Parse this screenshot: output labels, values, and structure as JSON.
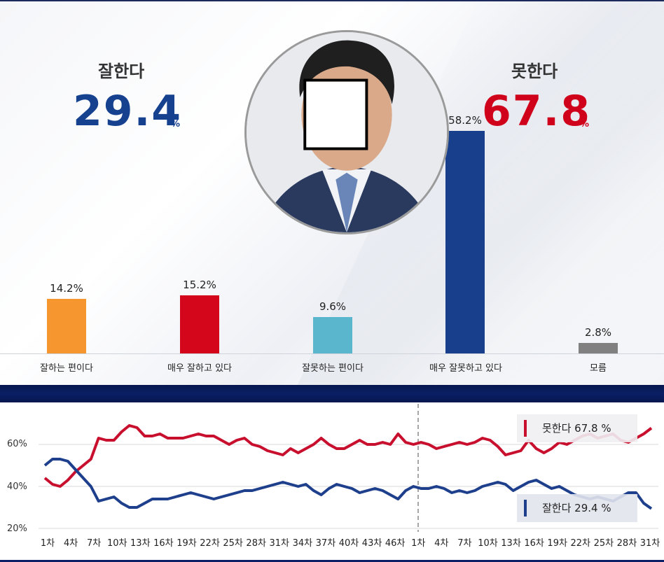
{
  "headline": {
    "good_label": "잘한다",
    "good_value": "29.4",
    "good_unit": "%",
    "bad_label": "못한다",
    "bad_value": "67.8",
    "bad_unit": "%"
  },
  "colors": {
    "good": "#16418f",
    "bad": "#d0021b",
    "orange": "#f6962e",
    "red_bar": "#d3061b",
    "light_blue": "#59b6cd",
    "navy_bar": "#173f8c",
    "gray_bar": "#808080"
  },
  "chart_data": [
    {
      "type": "bar",
      "categories": [
        "잘하는 편이다",
        "매우 잘하고 있다",
        "잘못하는 편이다",
        "매우 잘못하고 있다",
        "모름"
      ],
      "values": [
        14.2,
        15.2,
        9.6,
        58.2,
        2.8
      ],
      "value_labels": [
        "14.2%",
        "15.2%",
        "9.6%",
        "58.2%",
        "2.8%"
      ],
      "bar_colors": [
        "#f6962e",
        "#d3061b",
        "#59b6cd",
        "#173f8c",
        "#808080"
      ],
      "ylim": [
        0,
        60
      ]
    },
    {
      "type": "line",
      "x_tick_labels": [
        "1차",
        "4차",
        "7차",
        "10차",
        "13차",
        "16차",
        "19차",
        "22차",
        "25차",
        "28차",
        "31차",
        "34차",
        "37차",
        "40차",
        "43차",
        "46차",
        "1차",
        "4차",
        "7차",
        "10차",
        "13차",
        "16차",
        "19차",
        "22차",
        "25차",
        "28차",
        "31차"
      ],
      "y_tick_labels": [
        "60%",
        "40%",
        "20%"
      ],
      "ylim": [
        20,
        70
      ],
      "divider_after_index": 47,
      "series": [
        {
          "name": "못한다",
          "color": "#c8102e",
          "values": [
            44,
            41,
            40,
            43,
            47,
            50,
            53,
            63,
            62,
            62,
            66,
            69,
            68,
            64,
            64,
            65,
            63,
            63,
            63,
            64,
            65,
            64,
            64,
            62,
            60,
            62,
            63,
            60,
            59,
            57,
            56,
            55,
            58,
            56,
            58,
            60,
            63,
            60,
            58,
            58,
            60,
            62,
            60,
            60,
            61,
            60,
            65,
            61,
            60,
            61,
            60,
            58,
            59,
            60,
            61,
            60,
            61,
            63,
            62,
            59,
            55,
            56,
            57,
            62,
            58,
            56,
            58,
            61,
            60,
            62,
            64,
            65,
            63,
            64,
            65,
            62,
            61,
            63,
            65,
            67.8
          ],
          "legend_label": "못한다 67.8 %"
        },
        {
          "name": "잘한다",
          "color": "#1e3f8c",
          "values": [
            50,
            53,
            53,
            52,
            48,
            44,
            40,
            33,
            34,
            35,
            32,
            30,
            30,
            32,
            34,
            34,
            34,
            35,
            36,
            37,
            36,
            35,
            34,
            35,
            36,
            37,
            38,
            38,
            39,
            40,
            41,
            42,
            41,
            40,
            41,
            38,
            36,
            39,
            41,
            40,
            39,
            37,
            38,
            39,
            38,
            36,
            34,
            38,
            40,
            39,
            39,
            40,
            39,
            37,
            38,
            37,
            38,
            40,
            41,
            42,
            41,
            38,
            40,
            42,
            43,
            41,
            39,
            40,
            38,
            36,
            35,
            34,
            35,
            34,
            33,
            35,
            37,
            37,
            32,
            29.4
          ],
          "legend_label": "잘한다 29.4 %"
        }
      ]
    }
  ]
}
